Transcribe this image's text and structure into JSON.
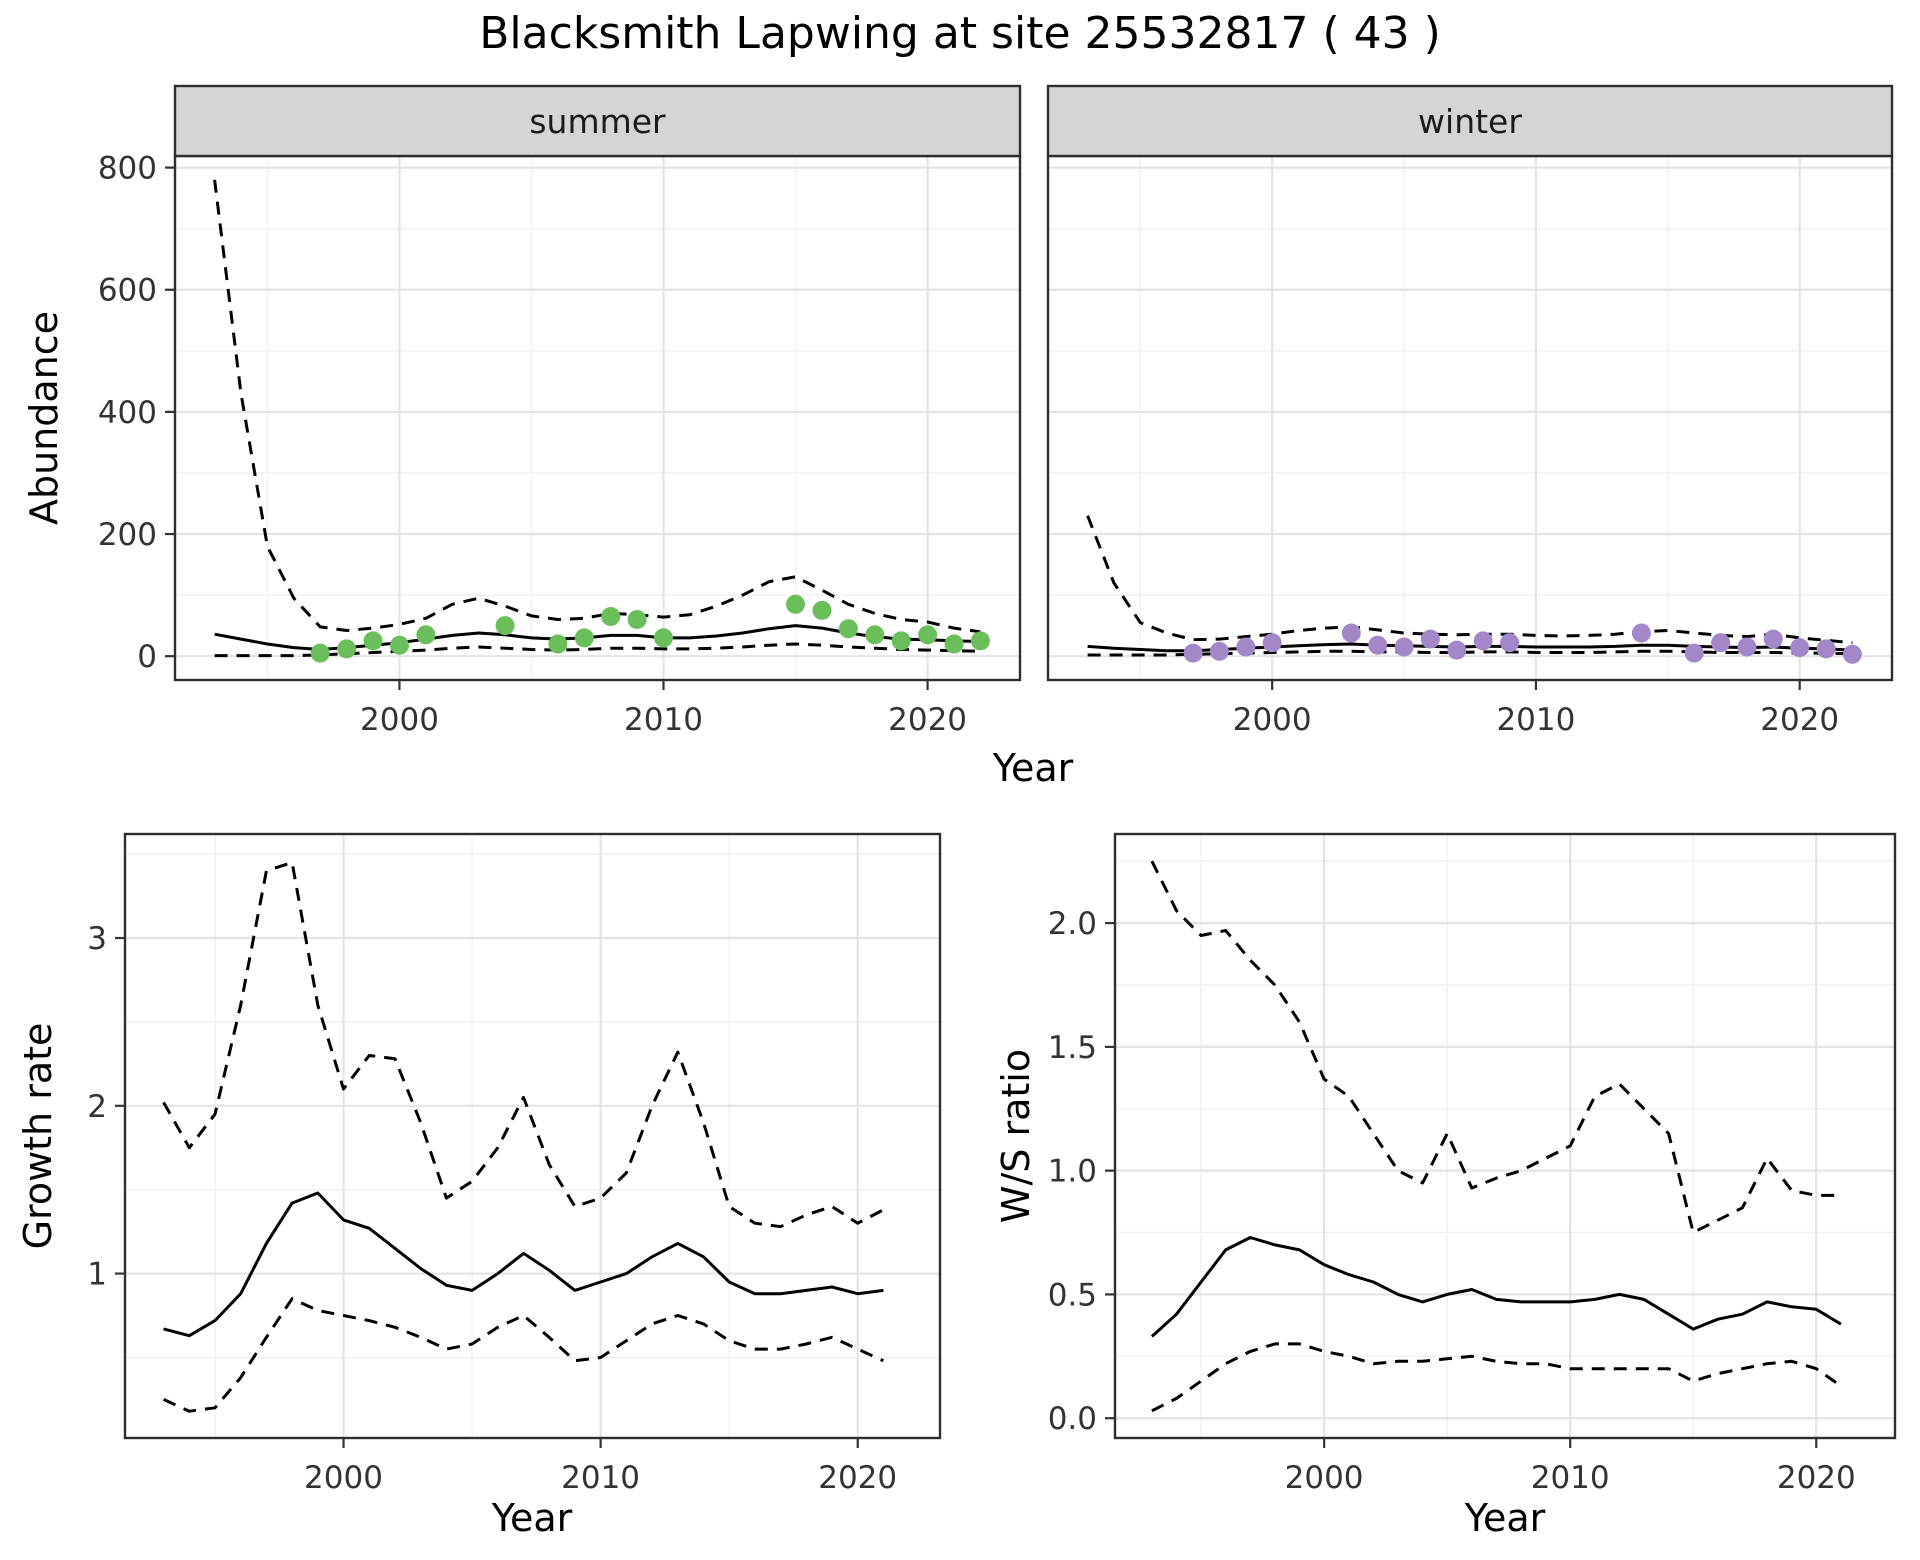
{
  "title": "Blacksmith Lapwing at site 25532817 ( 43 )",
  "colors": {
    "line": "#000000",
    "summer_points": "#6abf5a",
    "winter_points": "#a487c9",
    "strip_bg": "#d5d5d5",
    "panel_border": "#2e2e2e",
    "grid_major": "#e4e4e4",
    "grid_minor": "#f1f1f1",
    "tick_label": "#333333",
    "tick_mark": "#333333"
  },
  "chart_data": [
    {
      "id": "abundance_summer",
      "type": "line",
      "facet": "summer",
      "xlabel": "Year",
      "ylabel": "Abundance",
      "xlim": [
        1991.5,
        2023.5
      ],
      "ylim": [
        -39,
        819
      ],
      "xticks": [
        2000,
        2010,
        2020
      ],
      "xticklabels": [
        "2000",
        "2010",
        "2020"
      ],
      "xminor": [
        1995,
        2005,
        2015
      ],
      "yticks": [
        0,
        200,
        400,
        600,
        800
      ],
      "yticklabels": [
        "0",
        "200",
        "400",
        "600",
        "800"
      ],
      "yminor": [
        100,
        300,
        500,
        700
      ],
      "x": [
        1993,
        1994,
        1995,
        1996,
        1997,
        1998,
        1999,
        2000,
        2001,
        2002,
        2003,
        2004,
        2005,
        2006,
        2007,
        2008,
        2009,
        2010,
        2011,
        2012,
        2013,
        2014,
        2015,
        2016,
        2017,
        2018,
        2019,
        2020,
        2021,
        2022
      ],
      "series": [
        {
          "name": "upper_95ci",
          "style": "dashed",
          "values": [
            780,
            430,
            180,
            95,
            48,
            42,
            46,
            52,
            62,
            85,
            95,
            82,
            66,
            60,
            62,
            70,
            68,
            64,
            68,
            82,
            100,
            122,
            130,
            108,
            85,
            70,
            60,
            56,
            46,
            40
          ]
        },
        {
          "name": "trend",
          "style": "solid",
          "values": [
            36,
            28,
            20,
            14,
            11,
            14,
            18,
            22,
            28,
            34,
            38,
            35,
            30,
            28,
            30,
            34,
            34,
            30,
            30,
            33,
            38,
            45,
            50,
            46,
            38,
            32,
            28,
            27,
            25,
            24
          ]
        },
        {
          "name": "lower_95ci",
          "style": "dashed",
          "values": [
            1,
            1,
            1,
            1,
            2,
            4,
            6,
            8,
            10,
            13,
            15,
            13,
            11,
            10,
            11,
            13,
            13,
            12,
            12,
            13,
            15,
            18,
            20,
            18,
            15,
            13,
            11,
            10,
            9,
            8
          ]
        }
      ],
      "points": {
        "name": "observed_counts",
        "color": "#6abf5a",
        "x": [
          1997,
          1998,
          1999,
          2000,
          2001,
          2004,
          2006,
          2007,
          2008,
          2009,
          2010,
          2015,
          2016,
          2017,
          2018,
          2019,
          2020,
          2021,
          2022
        ],
        "values": [
          5,
          12,
          25,
          18,
          35,
          50,
          20,
          30,
          65,
          60,
          30,
          85,
          75,
          45,
          35,
          25,
          35,
          20,
          25
        ]
      }
    },
    {
      "id": "abundance_winter",
      "type": "line",
      "facet": "winter",
      "xlabel": "Year",
      "ylabel": "",
      "xlim": [
        1991.5,
        2023.5
      ],
      "ylim": [
        -39,
        819
      ],
      "xticks": [
        2000,
        2010,
        2020
      ],
      "xticklabels": [
        "2000",
        "2010",
        "2020"
      ],
      "xminor": [
        1995,
        2005,
        2015
      ],
      "yticks": [
        0,
        200,
        400,
        600,
        800
      ],
      "yticklabels": [
        "0",
        "200",
        "400",
        "600",
        "800"
      ],
      "yminor": [
        100,
        300,
        500,
        700
      ],
      "x": [
        1993,
        1994,
        1995,
        1996,
        1997,
        1998,
        1999,
        2000,
        2001,
        2002,
        2003,
        2004,
        2005,
        2006,
        2007,
        2008,
        2009,
        2010,
        2011,
        2012,
        2013,
        2014,
        2015,
        2016,
        2017,
        2018,
        2019,
        2020,
        2021,
        2022
      ],
      "series": [
        {
          "name": "upper_95ci",
          "style": "dashed",
          "values": [
            230,
            120,
            55,
            38,
            27,
            28,
            32,
            36,
            42,
            46,
            48,
            43,
            38,
            36,
            35,
            36,
            36,
            34,
            33,
            34,
            36,
            40,
            42,
            38,
            34,
            32,
            36,
            30,
            26,
            22
          ]
        },
        {
          "name": "trend",
          "style": "solid",
          "values": [
            16,
            13,
            11,
            9,
            9,
            11,
            13,
            15,
            17,
            19,
            20,
            18,
            17,
            16,
            15,
            16,
            16,
            15,
            15,
            15,
            16,
            18,
            18,
            16,
            15,
            14,
            15,
            13,
            12,
            10
          ]
        },
        {
          "name": "lower_95ci",
          "style": "dashed",
          "values": [
            2,
            2,
            2,
            2,
            3,
            4,
            5,
            6,
            7,
            8,
            8,
            7,
            7,
            6,
            6,
            7,
            7,
            6,
            6,
            6,
            7,
            8,
            8,
            7,
            6,
            6,
            6,
            5,
            5,
            4
          ]
        }
      ],
      "points": {
        "name": "observed_counts",
        "color": "#a487c9",
        "x": [
          1997,
          1998,
          1999,
          2000,
          2003,
          2004,
          2005,
          2006,
          2007,
          2008,
          2009,
          2014,
          2016,
          2017,
          2018,
          2019,
          2020,
          2021,
          2022
        ],
        "values": [
          5,
          8,
          15,
          22,
          38,
          18,
          15,
          28,
          10,
          25,
          22,
          38,
          5,
          22,
          15,
          28,
          14,
          12,
          3
        ]
      }
    },
    {
      "id": "growth_rate",
      "type": "line",
      "facet": null,
      "xlabel": "Year",
      "ylabel": "Growth rate",
      "xlim": [
        1991.5,
        2023.2
      ],
      "ylim": [
        0.02,
        3.62
      ],
      "xticks": [
        2000,
        2010,
        2020
      ],
      "xticklabels": [
        "2000",
        "2010",
        "2020"
      ],
      "xminor": [
        1995,
        2005,
        2015
      ],
      "yticks": [
        1,
        2,
        3
      ],
      "yticklabels": [
        "1",
        "2",
        "3"
      ],
      "yminor": [
        0.5,
        1.5,
        2.5,
        3.5
      ],
      "x": [
        1993,
        1994,
        1995,
        1996,
        1997,
        1998,
        1999,
        2000,
        2001,
        2002,
        2003,
        2004,
        2005,
        2006,
        2007,
        2008,
        2009,
        2010,
        2011,
        2012,
        2013,
        2014,
        2015,
        2016,
        2017,
        2018,
        2019,
        2020,
        2021
      ],
      "series": [
        {
          "name": "upper_95ci",
          "style": "dashed",
          "values": [
            2.02,
            1.75,
            1.95,
            2.6,
            3.4,
            3.45,
            2.6,
            2.1,
            2.3,
            2.28,
            1.9,
            1.45,
            1.55,
            1.75,
            2.05,
            1.65,
            1.4,
            1.45,
            1.6,
            2.0,
            2.32,
            1.9,
            1.4,
            1.3,
            1.28,
            1.35,
            1.4,
            1.3,
            1.38
          ]
        },
        {
          "name": "trend",
          "style": "solid",
          "values": [
            0.67,
            0.63,
            0.72,
            0.88,
            1.18,
            1.42,
            1.48,
            1.32,
            1.27,
            1.15,
            1.03,
            0.93,
            0.9,
            1.0,
            1.12,
            1.02,
            0.9,
            0.95,
            1.0,
            1.1,
            1.18,
            1.1,
            0.95,
            0.88,
            0.88,
            0.9,
            0.92,
            0.88,
            0.9
          ]
        },
        {
          "name": "lower_95ci",
          "style": "dashed",
          "values": [
            0.25,
            0.18,
            0.2,
            0.38,
            0.62,
            0.85,
            0.78,
            0.75,
            0.72,
            0.68,
            0.62,
            0.55,
            0.58,
            0.68,
            0.75,
            0.62,
            0.48,
            0.5,
            0.6,
            0.7,
            0.75,
            0.7,
            0.6,
            0.55,
            0.55,
            0.58,
            0.62,
            0.55,
            0.48
          ]
        }
      ]
    },
    {
      "id": "ws_ratio",
      "type": "line",
      "facet": null,
      "xlabel": "Year",
      "ylabel": "W/S ratio",
      "xlim": [
        1991.5,
        2023.2
      ],
      "ylim": [
        -0.08,
        2.36
      ],
      "xticks": [
        2000,
        2010,
        2020
      ],
      "xticklabels": [
        "2000",
        "2010",
        "2020"
      ],
      "xminor": [
        1995,
        2005,
        2015
      ],
      "yticks": [
        0,
        0.5,
        1,
        1.5,
        2
      ],
      "yticklabels": [
        "0.0",
        "0.5",
        "1.0",
        "1.5",
        "2.0"
      ],
      "yminor": [
        0.25,
        0.75,
        1.25,
        1.75,
        2.25
      ],
      "x": [
        1993,
        1994,
        1995,
        1996,
        1997,
        1998,
        1999,
        2000,
        2001,
        2002,
        2003,
        2004,
        2005,
        2006,
        2007,
        2008,
        2009,
        2010,
        2011,
        2012,
        2013,
        2014,
        2015,
        2016,
        2017,
        2018,
        2019,
        2020,
        2021
      ],
      "series": [
        {
          "name": "upper_95ci",
          "style": "dashed",
          "values": [
            2.25,
            2.05,
            1.95,
            1.97,
            1.85,
            1.75,
            1.6,
            1.37,
            1.3,
            1.15,
            1.0,
            0.95,
            1.15,
            0.93,
            0.97,
            1.0,
            1.05,
            1.1,
            1.3,
            1.35,
            1.25,
            1.15,
            0.75,
            0.8,
            0.85,
            1.05,
            0.92,
            0.9,
            0.9
          ]
        },
        {
          "name": "trend",
          "style": "solid",
          "values": [
            0.33,
            0.42,
            0.55,
            0.68,
            0.73,
            0.7,
            0.68,
            0.62,
            0.58,
            0.55,
            0.5,
            0.47,
            0.5,
            0.52,
            0.48,
            0.47,
            0.47,
            0.47,
            0.48,
            0.5,
            0.48,
            0.42,
            0.36,
            0.4,
            0.42,
            0.47,
            0.45,
            0.44,
            0.38
          ]
        },
        {
          "name": "lower_95ci",
          "style": "dashed",
          "values": [
            0.03,
            0.08,
            0.15,
            0.22,
            0.27,
            0.3,
            0.3,
            0.27,
            0.25,
            0.22,
            0.23,
            0.23,
            0.24,
            0.25,
            0.23,
            0.22,
            0.22,
            0.2,
            0.2,
            0.2,
            0.2,
            0.2,
            0.15,
            0.18,
            0.2,
            0.22,
            0.23,
            0.2,
            0.13
          ]
        }
      ]
    }
  ]
}
